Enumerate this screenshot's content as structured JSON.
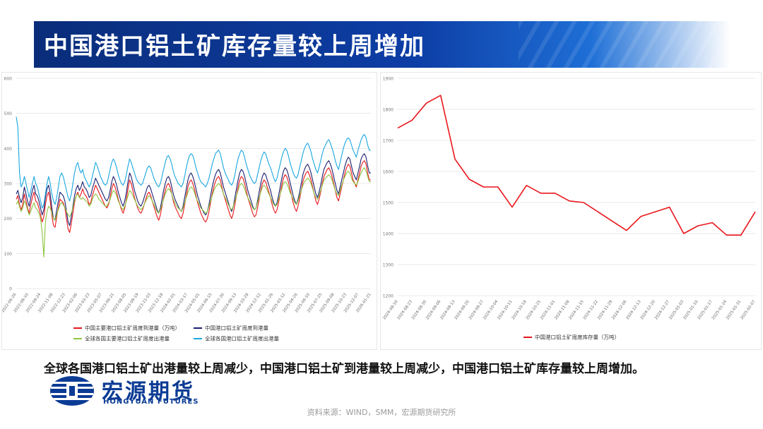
{
  "header": {
    "title": "中国港口铝土矿库存量较上周增加"
  },
  "summary_text": "全球各国港口铝土矿出港量较上周减少，中国港口铝土矿到港量较上周减少，中国港口铝土矿库存量较上周增加。",
  "logo": {
    "cn": "宏源期货",
    "en": "HONGYUAN FUTURES"
  },
  "source_text": "资料来源：WIND，SMM，宏源期货研究所",
  "colors": {
    "banner": "#0d3ea6",
    "red": "#e8161b",
    "navy": "#1a1f6e",
    "green": "#8cc63f",
    "cyan": "#1aa7e0"
  },
  "chart_data": [
    {
      "type": "line",
      "title": "",
      "ylim": [
        0,
        600
      ],
      "yticks": [
        "0",
        "100",
        "200",
        "300",
        "400",
        "500",
        "600"
      ],
      "x_tick_labels": [
        "2022-06-26",
        "2022-08-10",
        "2022-09-24",
        "2022-11-08",
        "2022-12-23",
        "2023-02-06",
        "2023-03-23",
        "2023-05-07",
        "2023-06-21",
        "2023-08-05",
        "2023-09-19",
        "2023-11-03",
        "2023-12-18",
        "2024-02-01",
        "2024-03-17",
        "2024-05-01",
        "2024-06-15",
        "2024-07-30",
        "2024-09-13",
        "2024-10-28",
        "2024-12-12",
        "2025-01-26",
        "2025-03-12",
        "2025-04-26",
        "2025-06-10",
        "2025-07-25",
        "2025-09-08",
        "2025-10-23",
        "2025-12-07",
        "2026-01-21"
      ],
      "legend_position": "bottom",
      "series": [
        {
          "name": "中国主要港口铝土矿周度到港量（万吨）",
          "color": "#e8161b",
          "values": [
            255,
            265,
            240,
            225,
            240,
            270,
            250,
            230,
            215,
            240,
            260,
            275,
            250,
            245,
            230,
            210,
            190,
            205,
            240,
            265,
            275,
            250,
            210,
            180,
            175,
            205,
            230,
            255,
            250,
            245,
            230,
            200,
            170,
            160,
            185,
            215,
            245,
            265,
            275,
            260,
            270,
            285,
            270,
            265,
            255,
            240,
            245,
            265,
            280,
            295,
            285,
            275,
            265,
            255,
            245,
            235,
            230,
            240,
            260,
            285,
            300,
            290,
            275,
            255,
            240,
            225,
            215,
            230,
            255,
            285,
            310,
            300,
            280,
            260,
            245,
            230,
            220,
            215,
            225,
            240,
            255,
            270,
            275,
            265,
            250,
            235,
            220,
            205,
            195,
            210,
            235,
            260,
            280,
            295,
            300,
            290,
            270,
            250,
            235,
            225,
            215,
            205,
            200,
            215,
            240,
            265,
            290,
            305,
            310,
            300,
            285,
            265,
            245,
            230,
            215,
            205,
            195,
            190,
            200,
            220,
            245,
            270,
            290,
            305,
            315,
            320,
            310,
            290,
            270,
            255,
            240,
            225,
            210,
            200,
            215,
            240,
            265,
            290,
            310,
            320,
            315,
            300,
            280,
            260,
            245,
            230,
            215,
            205,
            210,
            230,
            255,
            280,
            300,
            310,
            305,
            290,
            275,
            260,
            240,
            225,
            215,
            225,
            245,
            270,
            295,
            315,
            325,
            320,
            305,
            285,
            265,
            245,
            230,
            220,
            235,
            255,
            280,
            305,
            320,
            330,
            335,
            325,
            310,
            290,
            270,
            250,
            240,
            255,
            275,
            300,
            320,
            330,
            340,
            345,
            335,
            320,
            300,
            280,
            260,
            250,
            270,
            290,
            310,
            330,
            345,
            355,
            350,
            330,
            310,
            300,
            290,
            310,
            330,
            350,
            360,
            365,
            355,
            330,
            310,
            310
          ]
        },
        {
          "name": "中国港口铝土矿周度到港量",
          "color": "#1a1f6e",
          "values": [
            270,
            280,
            260,
            245,
            260,
            290,
            270,
            250,
            235,
            260,
            280,
            295,
            270,
            265,
            250,
            230,
            210,
            225,
            260,
            285,
            295,
            270,
            230,
            200,
            195,
            225,
            250,
            275,
            270,
            265,
            250,
            220,
            190,
            180,
            205,
            235,
            265,
            285,
            295,
            280,
            290,
            305,
            290,
            285,
            275,
            260,
            265,
            285,
            300,
            315,
            305,
            295,
            285,
            275,
            265,
            255,
            250,
            260,
            280,
            305,
            320,
            310,
            295,
            275,
            260,
            245,
            235,
            250,
            275,
            305,
            330,
            320,
            300,
            280,
            265,
            250,
            240,
            235,
            245,
            260,
            275,
            290,
            295,
            285,
            270,
            255,
            240,
            225,
            215,
            230,
            255,
            280,
            300,
            315,
            320,
            310,
            290,
            270,
            255,
            245,
            235,
            225,
            220,
            235,
            260,
            285,
            310,
            325,
            330,
            320,
            305,
            285,
            265,
            250,
            235,
            225,
            215,
            210,
            220,
            240,
            265,
            290,
            310,
            325,
            335,
            340,
            330,
            310,
            290,
            275,
            260,
            245,
            230,
            220,
            235,
            260,
            285,
            310,
            330,
            340,
            335,
            320,
            300,
            280,
            265,
            250,
            235,
            225,
            230,
            250,
            275,
            300,
            320,
            330,
            325,
            310,
            295,
            280,
            260,
            245,
            235,
            245,
            265,
            290,
            315,
            335,
            345,
            340,
            325,
            305,
            285,
            265,
            250,
            240,
            255,
            275,
            300,
            325,
            340,
            350,
            355,
            345,
            330,
            310,
            290,
            270,
            260,
            275,
            295,
            320,
            340,
            350,
            360,
            365,
            355,
            340,
            320,
            300,
            280,
            270,
            290,
            310,
            330,
            350,
            365,
            375,
            370,
            350,
            330,
            320,
            310,
            330,
            350,
            370,
            380,
            385,
            375,
            350,
            330,
            330
          ]
        },
        {
          "name": "全球各国主要港口铝土矿周度出港量",
          "color": "#8cc63f",
          "values": [
            240,
            250,
            235,
            220,
            230,
            250,
            240,
            225,
            210,
            220,
            235,
            245,
            230,
            225,
            215,
            200,
            160,
            90,
            190,
            220,
            235,
            230,
            215,
            200,
            195,
            210,
            225,
            240,
            245,
            240,
            230,
            220,
            210,
            205,
            215,
            230,
            250,
            265,
            270,
            260,
            255,
            260,
            255,
            250,
            245,
            235,
            240,
            255,
            265,
            270,
            265,
            255,
            250,
            245,
            240,
            235,
            235,
            245,
            255,
            270,
            280,
            275,
            265,
            250,
            240,
            230,
            225,
            235,
            250,
            265,
            280,
            275,
            265,
            255,
            245,
            235,
            230,
            225,
            230,
            240,
            250,
            260,
            265,
            260,
            250,
            240,
            230,
            220,
            215,
            225,
            240,
            255,
            270,
            280,
            285,
            280,
            270,
            255,
            245,
            235,
            230,
            225,
            220,
            230,
            245,
            260,
            275,
            285,
            290,
            285,
            275,
            260,
            250,
            240,
            230,
            225,
            220,
            215,
            220,
            235,
            250,
            265,
            280,
            290,
            295,
            300,
            295,
            285,
            270,
            260,
            250,
            240,
            230,
            225,
            235,
            250,
            265,
            280,
            295,
            300,
            295,
            285,
            270,
            260,
            250,
            240,
            230,
            225,
            230,
            245,
            260,
            275,
            290,
            295,
            290,
            280,
            270,
            260,
            250,
            240,
            235,
            240,
            255,
            270,
            285,
            300,
            305,
            300,
            290,
            275,
            265,
            255,
            245,
            240,
            250,
            265,
            280,
            295,
            305,
            310,
            315,
            310,
            300,
            285,
            270,
            260,
            255,
            265,
            280,
            295,
            310,
            315,
            320,
            325,
            320,
            310,
            295,
            280,
            270,
            265,
            280,
            295,
            310,
            320,
            330,
            335,
            330,
            315,
            305,
            300,
            295,
            305,
            320,
            330,
            340,
            345,
            335,
            320,
            305,
            305
          ]
        },
        {
          "name": "全球各国港口铝土矿周度出港量",
          "color": "#1aa7e0",
          "values": [
            490,
            460,
            330,
            290,
            300,
            320,
            300,
            280,
            260,
            280,
            300,
            320,
            300,
            290,
            270,
            250,
            230,
            240,
            270,
            300,
            320,
            300,
            270,
            250,
            240,
            260,
            290,
            320,
            330,
            320,
            300,
            280,
            260,
            250,
            270,
            300,
            330,
            350,
            360,
            340,
            330,
            340,
            320,
            310,
            300,
            290,
            300,
            320,
            340,
            360,
            350,
            335,
            320,
            310,
            300,
            295,
            300,
            320,
            340,
            360,
            370,
            360,
            345,
            325,
            310,
            300,
            295,
            305,
            325,
            350,
            370,
            360,
            345,
            330,
            315,
            305,
            300,
            295,
            300,
            315,
            330,
            345,
            350,
            345,
            330,
            315,
            305,
            295,
            290,
            300,
            320,
            340,
            360,
            375,
            380,
            370,
            355,
            335,
            320,
            310,
            300,
            295,
            290,
            300,
            320,
            345,
            365,
            380,
            385,
            380,
            365,
            345,
            330,
            315,
            305,
            300,
            295,
            290,
            300,
            315,
            335,
            355,
            370,
            385,
            390,
            395,
            385,
            365,
            345,
            330,
            320,
            310,
            300,
            295,
            305,
            325,
            350,
            370,
            385,
            395,
            390,
            375,
            355,
            340,
            325,
            315,
            305,
            300,
            305,
            325,
            345,
            365,
            380,
            390,
            385,
            370,
            355,
            345,
            330,
            315,
            305,
            315,
            335,
            355,
            375,
            390,
            400,
            395,
            380,
            360,
            345,
            330,
            320,
            315,
            325,
            345,
            365,
            385,
            400,
            410,
            415,
            405,
            390,
            370,
            355,
            340,
            330,
            345,
            365,
            385,
            400,
            410,
            420,
            425,
            415,
            400,
            385,
            365,
            350,
            340,
            360,
            380,
            400,
            415,
            425,
            430,
            425,
            410,
            395,
            385,
            375,
            395,
            410,
            425,
            435,
            440,
            430,
            410,
            395,
            395
          ]
        }
      ]
    },
    {
      "type": "line",
      "title": "",
      "ylim": [
        1200,
        1900
      ],
      "yticks": [
        "1200",
        "1300",
        "1400",
        "1500",
        "1600",
        "1700",
        "1800",
        "1900"
      ],
      "categories": [
        "2024-08-16",
        "2024-08-23",
        "2024-08-30",
        "2024-09-06",
        "2024-09-13",
        "2024-09-20",
        "2024-09-27",
        "2024-10-04",
        "2024-10-11",
        "2024-10-18",
        "2024-10-25",
        "2024-11-01",
        "2024-11-08",
        "2024-11-15",
        "2024-11-22",
        "2024-11-29",
        "2024-12-06",
        "2024-12-13",
        "2024-12-20",
        "2024-12-27",
        "2025-01-03",
        "2025-01-10",
        "2025-01-17",
        "2025-01-24",
        "2025-01-31",
        "2025-02-07"
      ],
      "legend_position": "bottom",
      "series": [
        {
          "name": "中国港口铝土矿周度库存量（万吨）",
          "color": "#e8161b",
          "values": [
            1740,
            1765,
            1820,
            1845,
            1640,
            1575,
            1550,
            1550,
            1485,
            1555,
            1530,
            1530,
            1505,
            1500,
            1470,
            1440,
            1410,
            1455,
            1470,
            1485,
            1400,
            1425,
            1435,
            1395,
            1395,
            1470
          ]
        }
      ]
    }
  ]
}
